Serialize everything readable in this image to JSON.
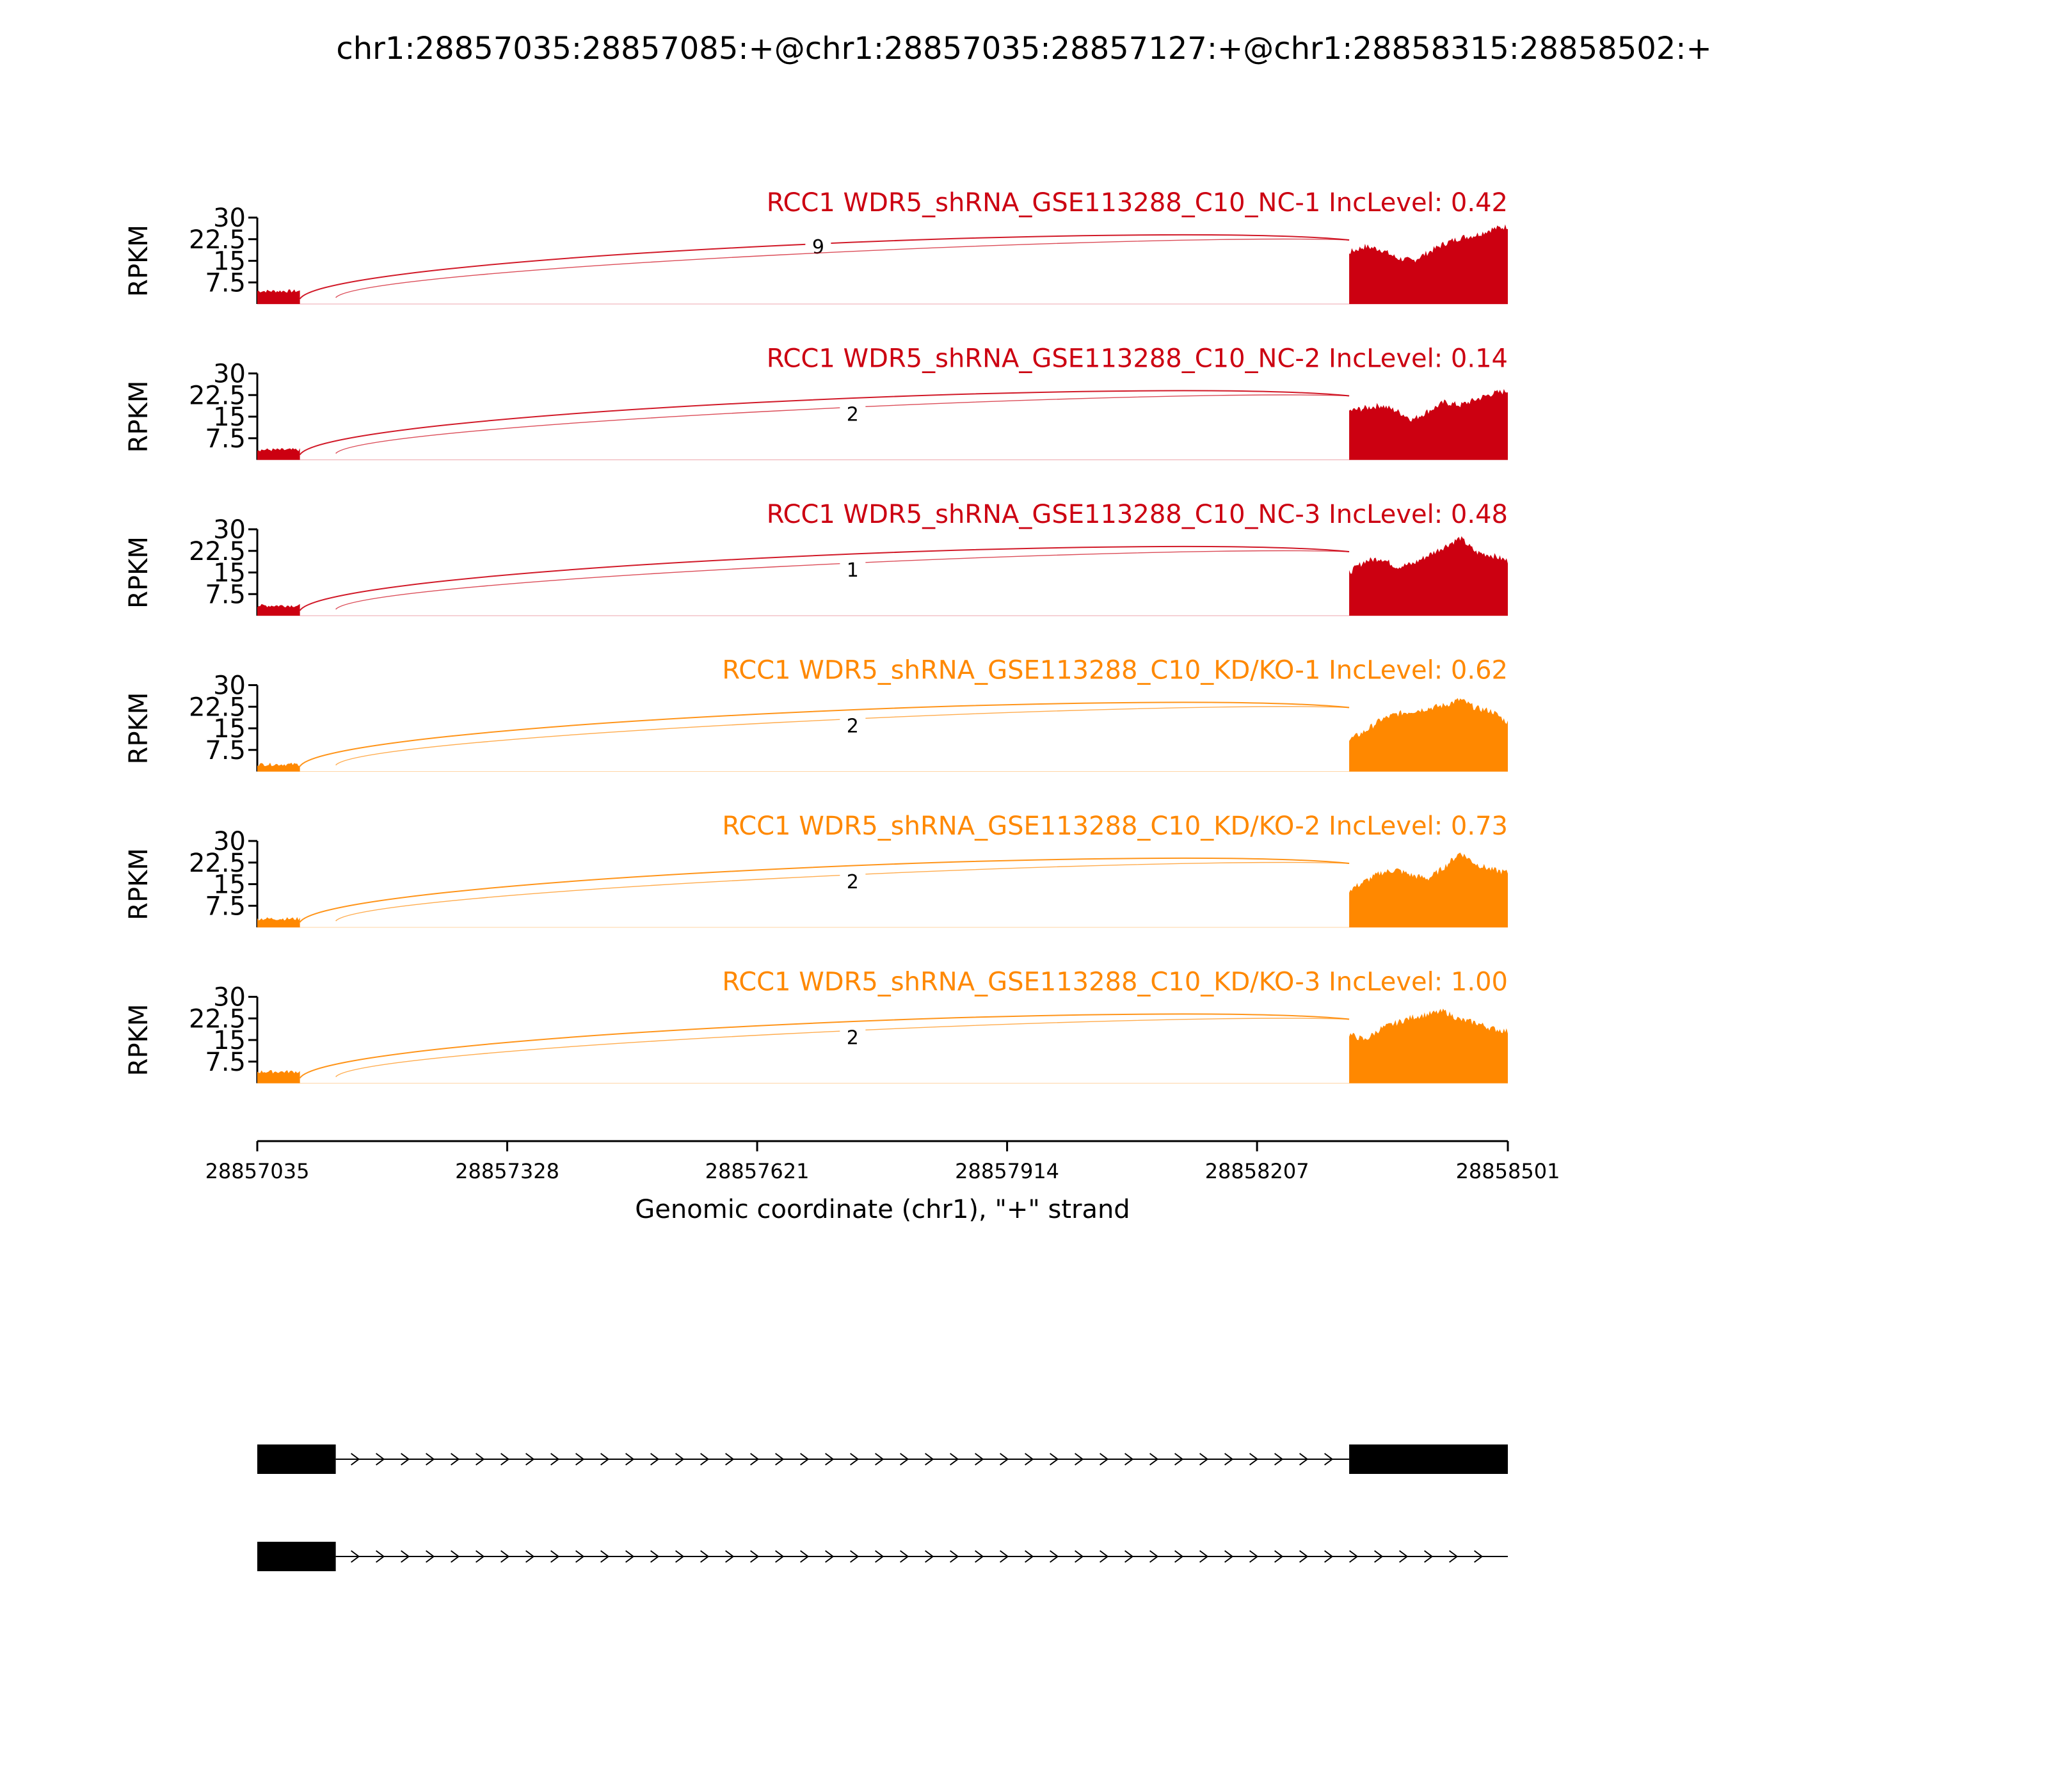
{
  "figure": {
    "title": "chr1:28857035:28857085:+@chr1:28857035:28857127:+@chr1:28858315:28858502:+"
  },
  "chart_data": {
    "type": "area",
    "title": "chr1:28857035:28857085:+@chr1:28857035:28857127:+@chr1:28858315:28858502:+",
    "xlabel": "Genomic coordinate (chr1), \"+\" strand",
    "ylabel": "RPKM",
    "xlim": [
      28857035,
      28858501
    ],
    "x_ticks": [
      28857035,
      28857328,
      28857621,
      28857914,
      28858207,
      28858501
    ],
    "ylim": [
      0,
      30
    ],
    "y_ticks": [
      "7.5",
      "15",
      "22.5",
      "30"
    ],
    "grid": false,
    "tracks": [
      {
        "label": "RCC1 WDR5_shRNA_GSE113288_C10_NC-1 IncLevel: 0.42",
        "color": "#cc0011",
        "coverage": [
          {
            "start": 28857035,
            "end": 28857085,
            "level": 4.5
          },
          {
            "start": 28858315,
            "end": 28858501,
            "levels": [
              18,
              20,
              19,
              16,
              15,
              18,
              21,
              23,
              24,
              26,
              27
            ]
          }
        ],
        "junctions": [
          {
            "start": 28857085,
            "end": 28858315,
            "count": "9"
          },
          {
            "start": 28857127,
            "end": 28858315,
            "count": ""
          }
        ]
      },
      {
        "label": "RCC1 WDR5_shRNA_GSE113288_C10_NC-2 IncLevel: 0.14",
        "color": "#cc0011",
        "coverage": [
          {
            "start": 28857035,
            "end": 28857085,
            "level": 3.5
          },
          {
            "start": 28858315,
            "end": 28858501,
            "levels": [
              17,
              18,
              19,
              17,
              14,
              17,
              20,
              19,
              21,
              23,
              24
            ]
          }
        ],
        "junctions": [
          {
            "start": 28857085,
            "end": 28858315,
            "count": ""
          },
          {
            "start": 28857127,
            "end": 28858315,
            "count": "2"
          }
        ]
      },
      {
        "label": "RCC1 WDR5_shRNA_GSE113288_C10_NC-3 IncLevel: 0.48",
        "color": "#cc0011",
        "coverage": [
          {
            "start": 28857035,
            "end": 28857085,
            "level": 3.5
          },
          {
            "start": 28858315,
            "end": 28858501,
            "levels": [
              15,
              19,
              20,
              17,
              18,
              21,
              24,
              27,
              22,
              21,
              19
            ]
          }
        ],
        "junctions": [
          {
            "start": 28857085,
            "end": 28858315,
            "count": ""
          },
          {
            "start": 28857127,
            "end": 28858315,
            "count": "1"
          }
        ]
      },
      {
        "label": "RCC1 WDR5_shRNA_GSE113288_C10_KD/KO-1 IncLevel: 0.62",
        "color": "#ff8800",
        "coverage": [
          {
            "start": 28857035,
            "end": 28857085,
            "level": 2.5
          },
          {
            "start": 28858315,
            "end": 28858501,
            "levels": [
              11,
              14,
              18,
              20,
              21,
              22,
              23,
              25,
              22,
              21,
              17
            ]
          }
        ],
        "junctions": [
          {
            "start": 28857085,
            "end": 28858315,
            "count": ""
          },
          {
            "start": 28857127,
            "end": 28858315,
            "count": "2"
          }
        ]
      },
      {
        "label": "RCC1 WDR5_shRNA_GSE113288_C10_KD/KO-2 IncLevel: 0.73",
        "color": "#ff8800",
        "coverage": [
          {
            "start": 28857035,
            "end": 28857085,
            "level": 3
          },
          {
            "start": 28858315,
            "end": 28858501,
            "levels": [
              13,
              16,
              19,
              20,
              18,
              17,
              21,
              26,
              22,
              20,
              19
            ]
          }
        ],
        "junctions": [
          {
            "start": 28857085,
            "end": 28858315,
            "count": ""
          },
          {
            "start": 28857127,
            "end": 28858315,
            "count": "2"
          }
        ]
      },
      {
        "label": "RCC1 WDR5_shRNA_GSE113288_C10_KD/KO-3 IncLevel: 1.00",
        "color": "#ff8800",
        "coverage": [
          {
            "start": 28857035,
            "end": 28857085,
            "level": 4
          },
          {
            "start": 28858315,
            "end": 28858501,
            "levels": [
              17,
              15,
              19,
              21,
              23,
              24,
              25,
              22,
              21,
              19,
              18
            ]
          }
        ],
        "junctions": [
          {
            "start": 28857085,
            "end": 28858315,
            "count": ""
          },
          {
            "start": 28857127,
            "end": 28858315,
            "count": "2"
          }
        ]
      }
    ],
    "gene_models": [
      {
        "exons": [
          [
            28857035,
            28857127
          ],
          [
            28858315,
            28858501
          ]
        ],
        "intron": [
          28857127,
          28858315
        ]
      },
      {
        "exons": [
          [
            28857035,
            28857127
          ]
        ],
        "intron": [
          28857127,
          28858501
        ]
      }
    ]
  }
}
